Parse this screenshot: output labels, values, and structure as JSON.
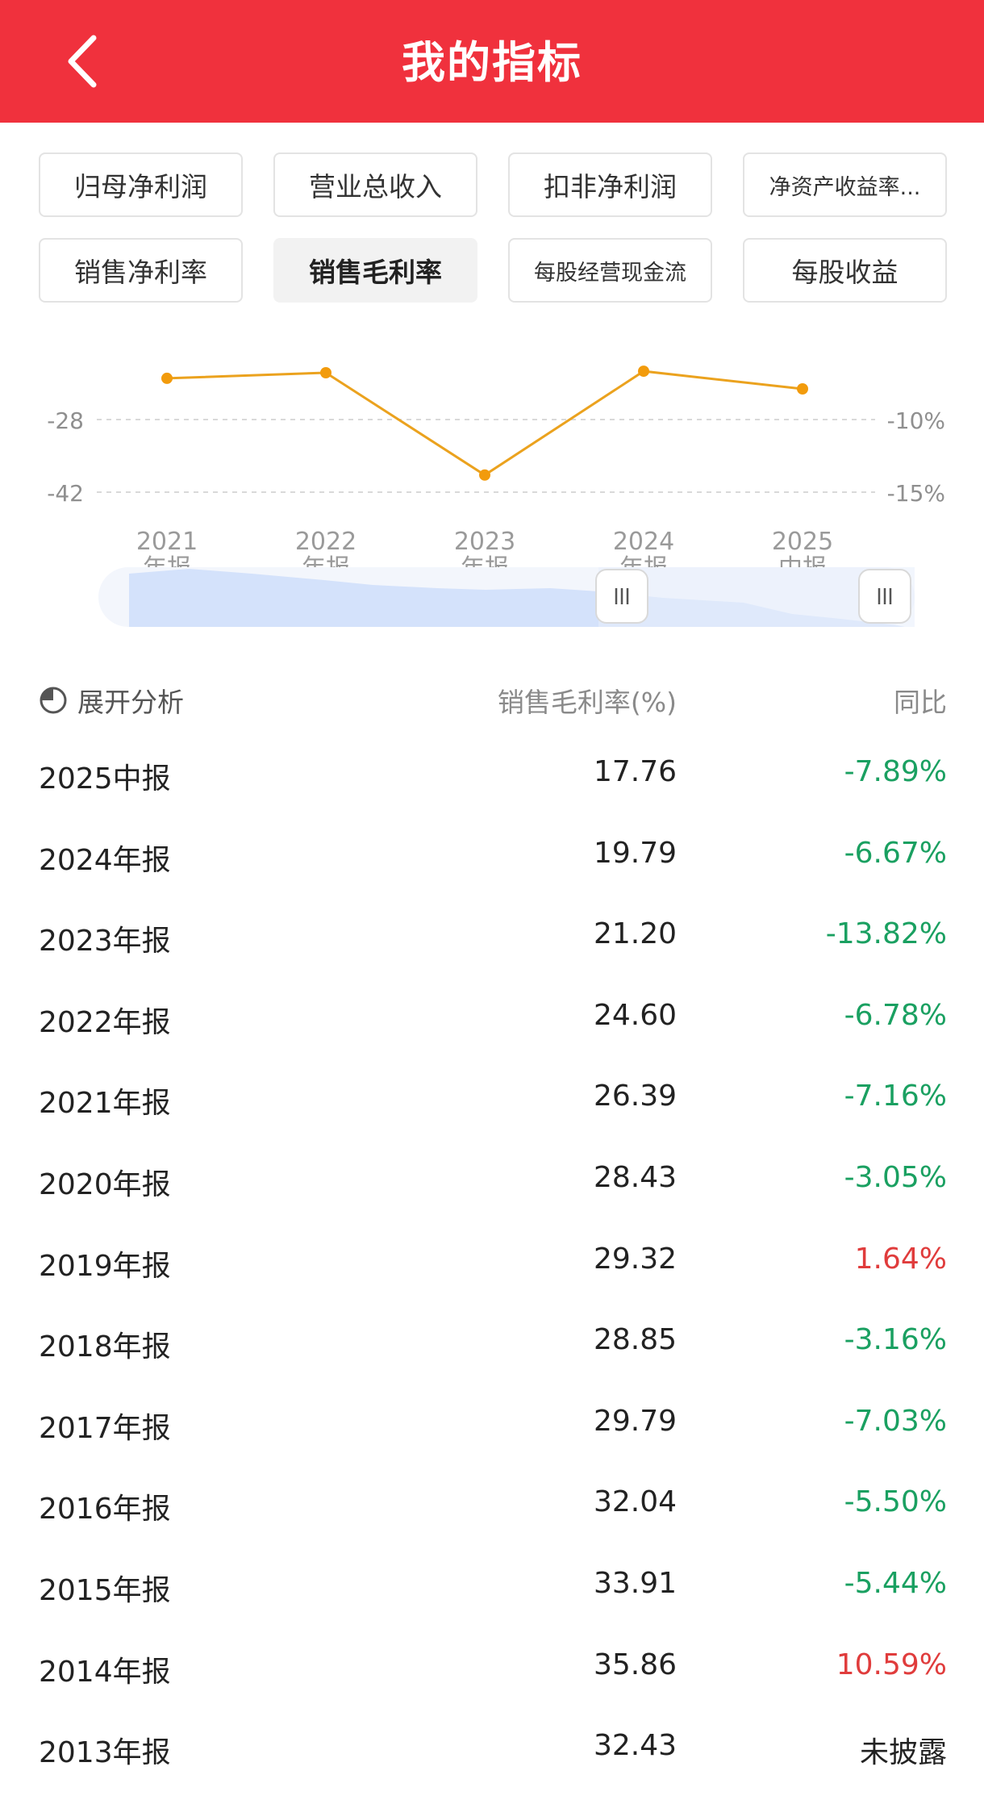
{
  "header": {
    "title": "我的指标"
  },
  "tabs": [
    {
      "label": "归母净利润",
      "active": false,
      "small": false
    },
    {
      "label": "营业总收入",
      "active": false,
      "small": false
    },
    {
      "label": "扣非净利润",
      "active": false,
      "small": false
    },
    {
      "label": "净资产收益率...",
      "active": false,
      "small": true
    },
    {
      "label": "销售净利率",
      "active": false,
      "small": false
    },
    {
      "label": "销售毛利率",
      "active": true,
      "small": false
    },
    {
      "label": "每股经营现金流",
      "active": false,
      "small": true
    },
    {
      "label": "每股收益",
      "active": false,
      "small": false
    }
  ],
  "chart_data": {
    "type": "line",
    "categories": [
      [
        "2021",
        "年报"
      ],
      [
        "2022",
        "年报"
      ],
      [
        "2023",
        "年报"
      ],
      [
        "2024",
        "年报"
      ],
      [
        "2025",
        "中报"
      ]
    ],
    "yoy_values": [
      -7.16,
      -6.78,
      -13.82,
      -6.67,
      -7.89
    ],
    "left_axis_ticks": [
      "-28",
      "-42"
    ],
    "right_axis_ticks": [
      "-10%",
      "-15%"
    ],
    "right_ylim": [
      -15,
      -10
    ],
    "grid": true,
    "line_color": "#eba21e",
    "point_color": "#f29b0c"
  },
  "table": {
    "expand_label": "展开分析",
    "value_header": "销售毛利率(%)",
    "yoy_header": "同比",
    "positive_color": "#e03c3c",
    "negative_color": "#1aa061",
    "neutral_color": "#222222",
    "rows": [
      {
        "period": "2025中报",
        "value": "17.76",
        "yoy": "-7.89%",
        "trend": "down"
      },
      {
        "period": "2024年报",
        "value": "19.79",
        "yoy": "-6.67%",
        "trend": "down"
      },
      {
        "period": "2023年报",
        "value": "21.20",
        "yoy": "-13.82%",
        "trend": "down"
      },
      {
        "period": "2022年报",
        "value": "24.60",
        "yoy": "-6.78%",
        "trend": "down"
      },
      {
        "period": "2021年报",
        "value": "26.39",
        "yoy": "-7.16%",
        "trend": "down"
      },
      {
        "period": "2020年报",
        "value": "28.43",
        "yoy": "-3.05%",
        "trend": "down"
      },
      {
        "period": "2019年报",
        "value": "29.32",
        "yoy": "1.64%",
        "trend": "up"
      },
      {
        "period": "2018年报",
        "value": "28.85",
        "yoy": "-3.16%",
        "trend": "down"
      },
      {
        "period": "2017年报",
        "value": "29.79",
        "yoy": "-7.03%",
        "trend": "down"
      },
      {
        "period": "2016年报",
        "value": "32.04",
        "yoy": "-5.50%",
        "trend": "down"
      },
      {
        "period": "2015年报",
        "value": "33.91",
        "yoy": "-5.44%",
        "trend": "down"
      },
      {
        "period": "2014年报",
        "value": "35.86",
        "yoy": "10.59%",
        "trend": "up"
      },
      {
        "period": "2013年报",
        "value": "32.43",
        "yoy": "未披露",
        "trend": "none"
      }
    ]
  }
}
